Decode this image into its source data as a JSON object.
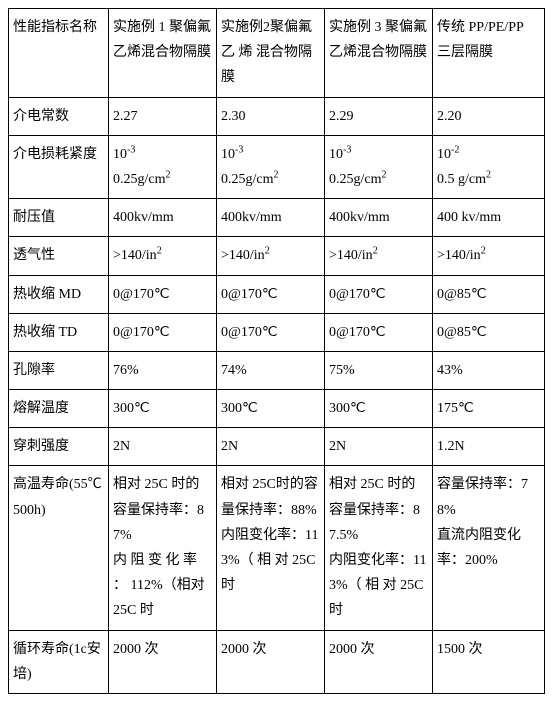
{
  "table": {
    "columns": [
      "性能指标名称",
      "实施例 1 聚偏氟乙烯混合物隔膜",
      "实施例2聚偏氟乙 烯 混合物隔膜",
      "实施例 3 聚偏氟乙烯混合物隔膜",
      "传统 PP/PE/PP 三层隔膜"
    ],
    "rows": [
      {
        "label": "介电常数",
        "c1": "2.27",
        "c2": "2.30",
        "c3": "2.29",
        "c4": "2.20"
      },
      {
        "label": "介电损耗紧度",
        "c1": {
          "sup": "-3",
          "line2": "0.25g/cm",
          "sup2": "2"
        },
        "c2": {
          "sup": "-3",
          "line2": "0.25g/cm",
          "sup2": "2"
        },
        "c3": {
          "sup": "-3",
          "line2": "0.25g/cm",
          "sup2": "2"
        },
        "c4": {
          "sup": "-2",
          "line2": "0.5 g/cm",
          "sup2": "2"
        }
      },
      {
        "label": "耐压值",
        "c1": "400kv/mm",
        "c2": "400kv/mm",
        "c3": "400kv/mm",
        "c4": "400 kv/mm"
      },
      {
        "label": "透气性",
        "c1": ">140/in",
        "c2": ">140/in",
        "c3": ">140/in",
        "c4": ">140/in",
        "sup": "2"
      },
      {
        "label": "热收缩 MD",
        "c1": "0@170℃",
        "c2": "0@170℃",
        "c3": "0@170℃",
        "c4": "0@85℃"
      },
      {
        "label": "热收缩 TD",
        "c1": "0@170℃",
        "c2": "0@170℃",
        "c3": "0@170℃",
        "c4": "0@85℃"
      },
      {
        "label": "孔隙率",
        "c1": "76%",
        "c2": "74%",
        "c3": "75%",
        "c4": "43%"
      },
      {
        "label": "熔解温度",
        "c1": "300℃",
        "c2": "300℃",
        "c3": "300℃",
        "c4": "175℃"
      },
      {
        "label": "穿刺强度",
        "c1": "2N",
        "c2": "2N",
        "c3": "2N",
        "c4": "1.2N"
      },
      {
        "label": "高温寿命(55℃500h)",
        "c1": "相对 25C 时的容量保持率：87%\n内 阻 变 化 率 ： 112%（相对 25C 时",
        "c2": "相对 25C时的容量保持率：88%\n内阻变化率：113%（ 相 对 25C 时",
        "c3": "相对 25C 时的容量保持率：87.5%\n内阻变化率：113%（ 相 对 25C 时",
        "c4": "容量保持率：78%\n直流内阻变化率：200%"
      },
      {
        "label": "循环寿命(1c安培)",
        "c1": "2000 次",
        "c2": "2000 次",
        "c3": "2000 次",
        "c4": "1500 次"
      }
    ]
  }
}
